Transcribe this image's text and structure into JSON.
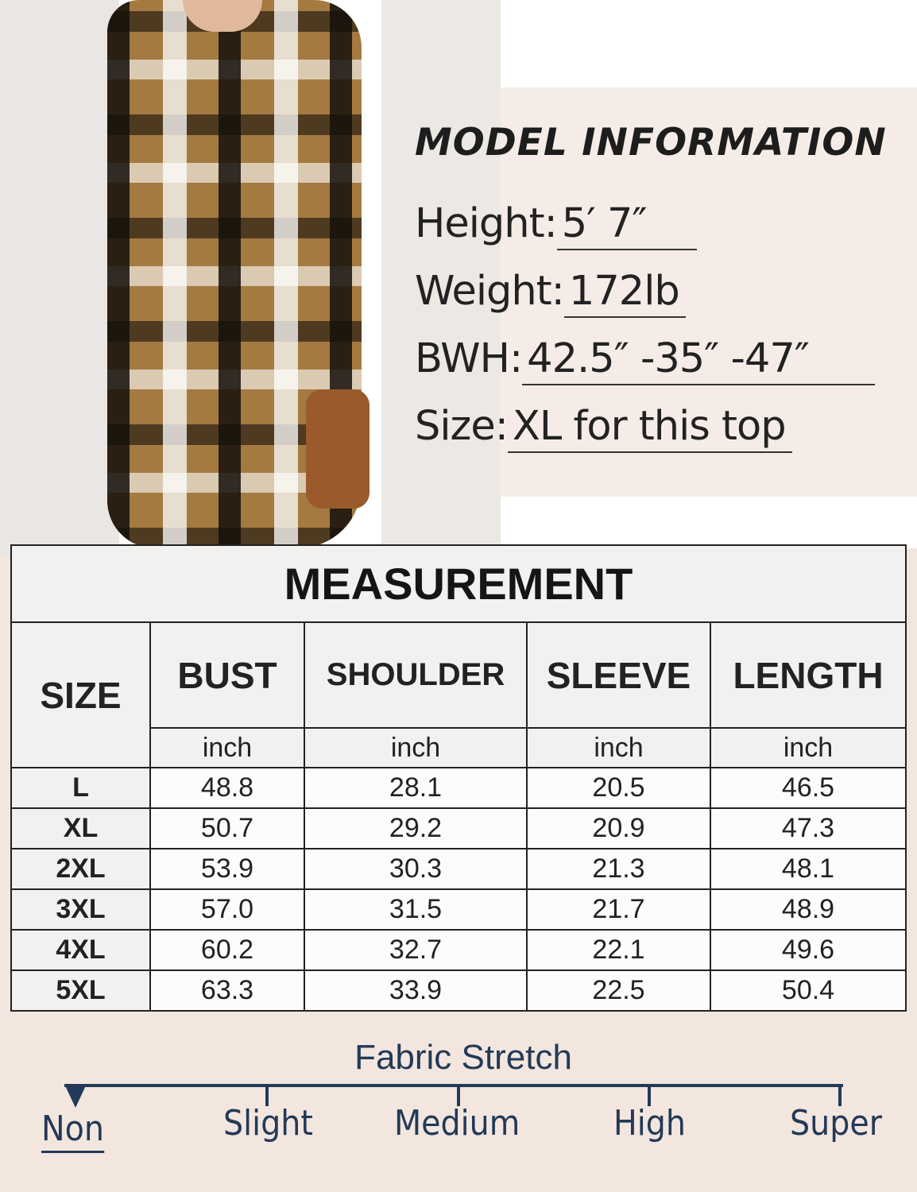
{
  "model_info": {
    "title": "MODEL INFORMATION",
    "rows": [
      {
        "label": "Height:",
        "value": "5′  7″"
      },
      {
        "label": "Weight:",
        "value": "172lb"
      },
      {
        "label": "BWH:",
        "value": "42.5″ -35″ -47″"
      },
      {
        "label": "Size:",
        "value": "XL for this top"
      }
    ]
  },
  "table": {
    "title": "MEASUREMENT",
    "size_header": "SIZE",
    "columns": [
      "BUST",
      "SHOULDER",
      "SLEEVE",
      "LENGTH"
    ],
    "unit": "inch",
    "rows": [
      {
        "size": "L",
        "values": [
          "48.8",
          "28.1",
          "20.5",
          "46.5"
        ]
      },
      {
        "size": "XL",
        "values": [
          "50.7",
          "29.2",
          "20.9",
          "47.3"
        ]
      },
      {
        "size": "2XL",
        "values": [
          "53.9",
          "30.3",
          "21.3",
          "48.1"
        ]
      },
      {
        "size": "3XL",
        "values": [
          "57.0",
          "31.5",
          "21.7",
          "48.9"
        ]
      },
      {
        "size": "4XL",
        "values": [
          "60.2",
          "32.7",
          "22.1",
          "49.6"
        ]
      },
      {
        "size": "5XL",
        "values": [
          "63.3",
          "33.9",
          "22.5",
          "50.4"
        ]
      }
    ]
  },
  "stretch": {
    "title": "Fabric Stretch",
    "levels": [
      "Non",
      "Slight",
      "Medium",
      "High",
      "Super"
    ],
    "selected": "Non",
    "color": "#223a57"
  }
}
